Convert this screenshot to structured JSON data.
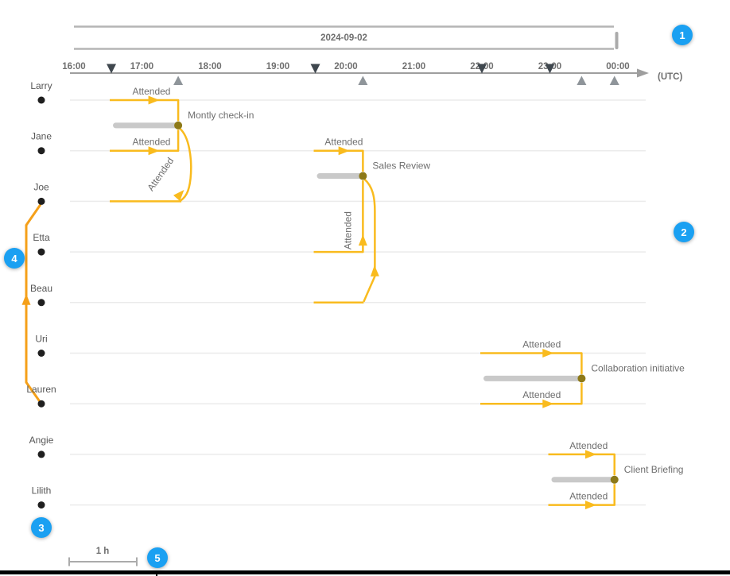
{
  "chart_data": {
    "type": "timeline",
    "date_label": "2024-09-02",
    "time_unit": "(UTC)",
    "axis_ticks": [
      "16:00",
      "17:00",
      "18:00",
      "19:00",
      "20:00",
      "21:00",
      "22:00",
      "23:00",
      "00:00"
    ],
    "entities": [
      "Larry",
      "Jane",
      "Joe",
      "Etta",
      "Beau",
      "Uri",
      "Lauren",
      "Angie",
      "Lilith"
    ],
    "events": [
      {
        "label": "Montly check-in",
        "start_utc": "16:33",
        "end_utc": "17:32",
        "participants": [
          {
            "entity": "Larry",
            "relationship": "Attended",
            "shape": "corner-top",
            "show_label": true
          },
          {
            "entity": "Jane",
            "relationship": "Attended",
            "shape": "corner-bottom",
            "show_label": true
          },
          {
            "entity": "Joe",
            "relationship": "Attended",
            "shape": "s-curve",
            "show_label": true
          }
        ]
      },
      {
        "label": "Sales Review",
        "start_utc": "19:33",
        "end_utc": "20:15",
        "participants": [
          {
            "entity": "Jane",
            "relationship": "Attended",
            "shape": "corner-top",
            "show_label": true
          },
          {
            "entity": "Etta",
            "relationship": "Attended",
            "shape": "straight-up",
            "show_label": true
          },
          {
            "entity": "Beau",
            "relationship": "Attended",
            "shape": "bulge-up",
            "show_label": false
          }
        ]
      },
      {
        "label": "Collaboration initiative",
        "start_utc": "22:00",
        "end_utc": "23:28",
        "participants": [
          {
            "entity": "Uri",
            "relationship": "Attended",
            "shape": "corner-top",
            "show_label": true
          },
          {
            "entity": "Lauren",
            "relationship": "Attended",
            "shape": "corner-bottom",
            "show_label": true
          }
        ]
      },
      {
        "label": "Client Briefing",
        "start_utc": "23:00",
        "end_utc": "23:57",
        "participants": [
          {
            "entity": "Angie",
            "relationship": "Attended",
            "shape": "corner-top",
            "show_label": true
          },
          {
            "entity": "Lilith",
            "relationship": "Attended",
            "shape": "corner-bottom",
            "show_label": true
          }
        ]
      }
    ],
    "entity_link": {
      "from": "Lauren",
      "to": "Joe"
    },
    "scale_label": "1 h",
    "annotations": [
      "1",
      "2",
      "3",
      "4",
      "5"
    ],
    "colors": {
      "event_link": "#F9BB1E",
      "entity_link": "#F5A019",
      "event_node": "#8D7918",
      "event_duration_bar": "#C9C9C9",
      "entity_node": "#1F1F1F",
      "row_line": "#EBEBEB",
      "axis": "#9E9E9E",
      "text": "#6E6E6E",
      "start_marker": "#3F474E",
      "end_marker": "#8F959A",
      "annotation_badge": "#1AA0F2",
      "date_band": "#B5B5B5"
    }
  }
}
